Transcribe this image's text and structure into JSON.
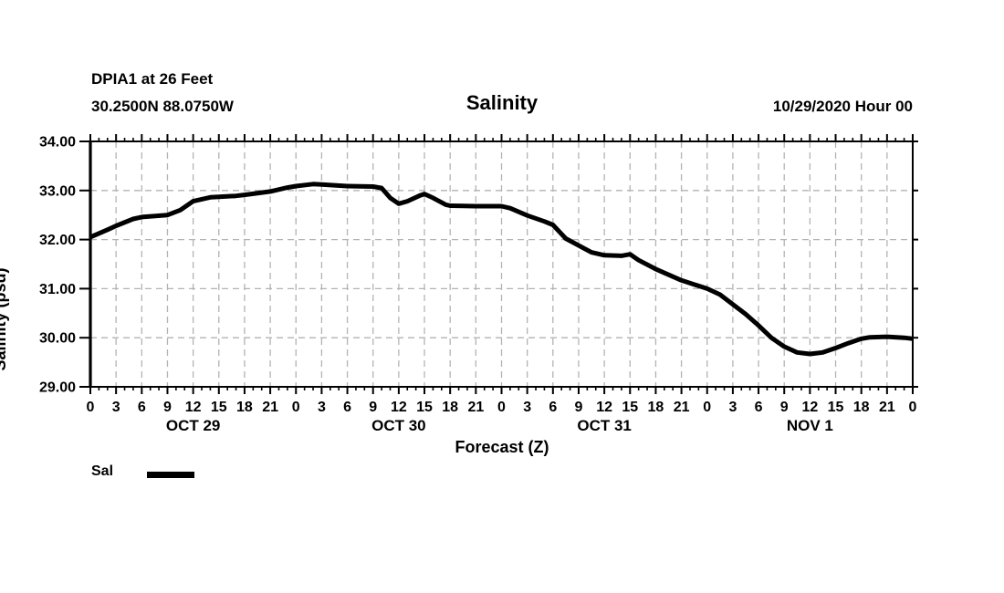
{
  "header": {
    "station_line1": "DPIA1 at 26 Feet",
    "station_line2": "30.2500N 88.0750W",
    "title": "Salinity",
    "datetime": "10/29/2020 Hour 00"
  },
  "legend": {
    "label": "Sal"
  },
  "colors": {
    "line": "#000000",
    "grid": "#b3b3b3",
    "axis": "#000000",
    "background": "#ffffff",
    "text": "#000000"
  },
  "chart_data": {
    "type": "line",
    "title": "Salinity",
    "xlabel": "Forecast (Z)",
    "ylabel": "Salinity (psu)",
    "xlim": [
      0,
      96
    ],
    "ylim": [
      29,
      34
    ],
    "grid": true,
    "legend_position": "bottom-left",
    "y_ticks": {
      "values": [
        34,
        33,
        32,
        31,
        30,
        29
      ],
      "labels": [
        "34.00",
        "33.00",
        "32.00",
        "31.00",
        "30.00",
        "29.00"
      ]
    },
    "x_ticks": {
      "hours": [
        0,
        3,
        6,
        9,
        12,
        15,
        18,
        21,
        24,
        27,
        30,
        33,
        36,
        39,
        42,
        45,
        48,
        51,
        54,
        57,
        60,
        63,
        66,
        69,
        72,
        75,
        78,
        81,
        84,
        87,
        90,
        93,
        96
      ],
      "labels": [
        "0",
        "3",
        "6",
        "9",
        "12",
        "15",
        "18",
        "21",
        "0",
        "3",
        "6",
        "9",
        "12",
        "15",
        "18",
        "21",
        "0",
        "3",
        "6",
        "9",
        "12",
        "15",
        "18",
        "21",
        "0",
        "3",
        "6",
        "9",
        "12",
        "15",
        "18",
        "21",
        "0"
      ],
      "minor_interval_hours": 1
    },
    "date_labels": [
      {
        "label": "OCT 29",
        "hour": 12
      },
      {
        "label": "OCT 30",
        "hour": 36
      },
      {
        "label": "OCT 31",
        "hour": 60
      },
      {
        "label": "NOV 1",
        "hour": 84
      }
    ],
    "series": [
      {
        "name": "Sal",
        "x": [
          0,
          2,
          3,
          5,
          6,
          9,
          10.5,
          12,
          14,
          15,
          17,
          18,
          21,
          23,
          24,
          26,
          27,
          30,
          33,
          34,
          35,
          36,
          37,
          38.5,
          39,
          40,
          41.5,
          42,
          45,
          48,
          49,
          51,
          53,
          54,
          55.5,
          57,
          58.5,
          60,
          62,
          63,
          64,
          66,
          69,
          72,
          73.5,
          75,
          76.5,
          78,
          79.5,
          81,
          82.5,
          84,
          85.5,
          87,
          88.5,
          90,
          91,
          93,
          95,
          96
        ],
        "y": [
          32.05,
          32.2,
          32.28,
          32.42,
          32.46,
          32.5,
          32.6,
          32.78,
          32.86,
          32.87,
          32.89,
          32.91,
          32.98,
          33.06,
          33.09,
          33.13,
          33.12,
          33.09,
          33.08,
          33.05,
          32.85,
          32.73,
          32.78,
          32.9,
          32.93,
          32.85,
          32.71,
          32.69,
          32.68,
          32.68,
          32.64,
          32.49,
          32.37,
          32.3,
          32.02,
          31.88,
          31.74,
          31.68,
          31.67,
          31.7,
          31.58,
          31.4,
          31.17,
          31.0,
          30.88,
          30.68,
          30.48,
          30.25,
          30.0,
          29.82,
          29.7,
          29.67,
          29.7,
          29.79,
          29.89,
          29.98,
          30.01,
          30.02,
          30.0,
          29.98
        ]
      }
    ]
  }
}
